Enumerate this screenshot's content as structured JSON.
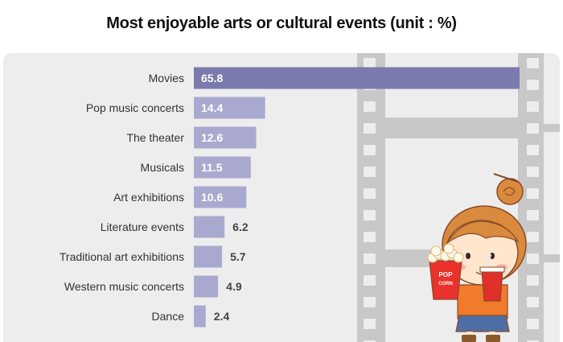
{
  "title": "Most enjoyable arts or cultural events (unit : %)",
  "colors": {
    "highlight_bar": "#7a7aae",
    "bar": "#a9a9d0",
    "panel": "#ededed",
    "film": "#c8c8c8",
    "film_hole": "#ededed",
    "label_inside": "#ffffff",
    "label_outside": "#444444"
  },
  "illustration": {
    "name": "girl-with-popcorn-and-drink",
    "popcorn_text_1": "POP",
    "popcorn_text_2": "CORN"
  },
  "chart_data": {
    "type": "bar",
    "orientation": "horizontal",
    "title": "Most enjoyable arts or cultural events (unit : %)",
    "categories": [
      "Movies",
      "Pop music concerts",
      "The theater",
      "Musicals",
      "Art exhibitions",
      "Literature events",
      "Traditional art exhibitions",
      "Western music concerts",
      "Dance"
    ],
    "values": [
      65.8,
      14.4,
      12.6,
      11.5,
      10.6,
      6.2,
      5.7,
      4.9,
      2.4
    ],
    "xlim": [
      0,
      65.8
    ],
    "grid": false,
    "legend": "none"
  }
}
